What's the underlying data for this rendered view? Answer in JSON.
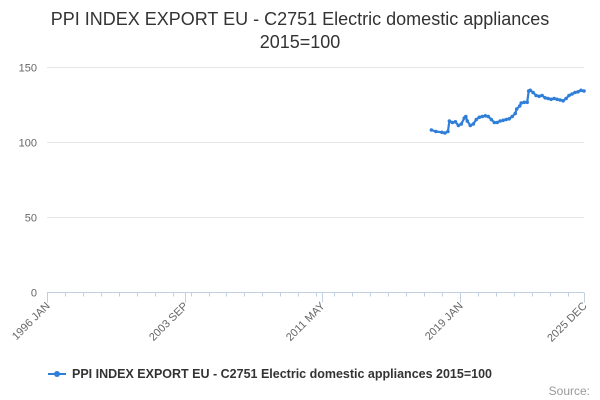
{
  "chart_data": {
    "type": "line",
    "title": "PPI INDEX EXPORT EU - C2751 Electric domestic appliances",
    "subtitle": "2015=100",
    "x_tick_labels": [
      "1996 JAN",
      "2003 SEP",
      "2011 MAY",
      "2019 JAN",
      "2025 DEC"
    ],
    "x_range": [
      "1996-01",
      "2025-12"
    ],
    "ylim": [
      0,
      150
    ],
    "y_ticks": [
      0,
      50,
      100,
      150
    ],
    "grid": true,
    "legend": "bottom",
    "series": [
      {
        "name": "PPI INDEX EXPORT EU - C2751 Electric domestic appliances 2015=100",
        "color": "#2f7ed8",
        "points": [
          [
            "2017-06",
            108
          ],
          [
            "2017-09",
            107
          ],
          [
            "2018-01",
            106.5
          ],
          [
            "2018-03",
            106
          ],
          [
            "2018-05",
            107
          ],
          [
            "2018-06",
            114
          ],
          [
            "2018-08",
            113
          ],
          [
            "2018-10",
            113.5
          ],
          [
            "2018-12",
            111
          ],
          [
            "2019-02",
            112
          ],
          [
            "2019-04",
            116
          ],
          [
            "2019-05",
            117
          ],
          [
            "2019-06",
            114
          ],
          [
            "2019-08",
            111
          ],
          [
            "2019-10",
            112
          ],
          [
            "2019-12",
            115
          ],
          [
            "2020-02",
            116.5
          ],
          [
            "2020-04",
            117
          ],
          [
            "2020-06",
            117.5
          ],
          [
            "2020-08",
            117
          ],
          [
            "2020-10",
            115
          ],
          [
            "2020-12",
            113
          ],
          [
            "2021-02",
            113
          ],
          [
            "2021-04",
            114
          ],
          [
            "2021-06",
            114.5
          ],
          [
            "2021-08",
            115
          ],
          [
            "2021-10",
            115.5
          ],
          [
            "2021-12",
            117
          ],
          [
            "2022-02",
            119
          ],
          [
            "2022-03",
            122
          ],
          [
            "2022-05",
            124
          ],
          [
            "2022-06",
            126
          ],
          [
            "2022-08",
            126.5
          ],
          [
            "2022-10",
            126.5
          ],
          [
            "2022-11",
            134
          ],
          [
            "2022-12",
            134.5
          ],
          [
            "2023-02",
            133
          ],
          [
            "2023-04",
            131
          ],
          [
            "2023-06",
            130.5
          ],
          [
            "2023-08",
            131
          ],
          [
            "2023-10",
            129.5
          ],
          [
            "2023-12",
            129
          ],
          [
            "2024-02",
            128.5
          ],
          [
            "2024-04",
            129
          ],
          [
            "2024-06",
            128.5
          ],
          [
            "2024-08",
            128
          ],
          [
            "2024-10",
            127.5
          ],
          [
            "2024-12",
            129
          ],
          [
            "2025-02",
            131
          ],
          [
            "2025-04",
            132
          ],
          [
            "2025-06",
            133
          ],
          [
            "2025-08",
            133.5
          ],
          [
            "2025-10",
            134.5
          ],
          [
            "2025-12",
            134
          ]
        ]
      }
    ],
    "source_label": "Source:"
  }
}
